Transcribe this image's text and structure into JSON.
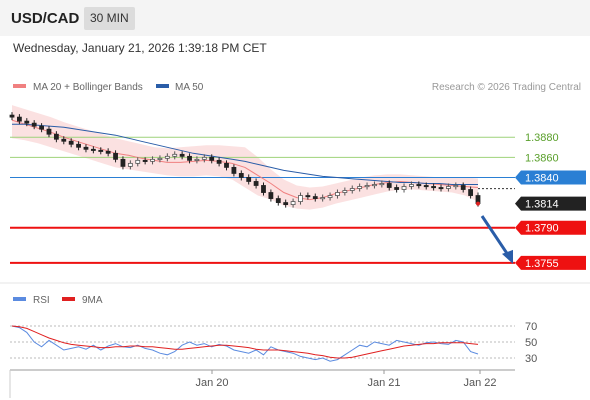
{
  "header": {
    "symbol": "USD/CAD",
    "timeframe": "30 MIN"
  },
  "date_line": "Wednesday, January 21, 2026 1:39:18 PM CET",
  "colors": {
    "ma20": "#f08080",
    "band": "#f8c8c8",
    "ma50": "#2a5da8",
    "candle_up": "#555555",
    "candle_down": "#222222",
    "resistance": "#9ed27a",
    "support": "#ee1111",
    "pivot": "#2a7fd4",
    "rsi": "#5b8be0",
    "rsi_ma": "#e02020",
    "arrow": "#2a5da8"
  },
  "chart_data": [
    {
      "type": "line",
      "title": "",
      "legend": {
        "placement": "top-left",
        "entries": [
          "MA 20 + Bollinger Bands",
          "MA 50"
        ]
      },
      "watermark": "Research © 2026 Trading Central",
      "ylim": [
        1.3738,
        1.3922
      ],
      "x_ticks": [
        "Jan 20",
        "Jan 21",
        "Jan 22"
      ],
      "series": [
        {
          "name": "MA 20 + Bollinger Bands",
          "values": [
            1.3897,
            1.3893,
            1.3889,
            1.3885,
            1.388,
            1.3876,
            1.3872,
            1.3868,
            1.3864,
            1.3862,
            1.3859,
            1.3857,
            1.3855,
            1.3855,
            1.3856,
            1.3857,
            1.3856,
            1.3854,
            1.385,
            1.3842,
            1.3834,
            1.3825,
            1.382,
            1.3818,
            1.382,
            1.3824,
            1.3827,
            1.383,
            1.3833,
            1.3835,
            1.3836,
            1.3835,
            1.3834,
            1.3833,
            1.3832,
            1.3831,
            1.383
          ],
          "upper": [
            1.3912,
            1.3908,
            1.3904,
            1.39,
            1.3895,
            1.3891,
            1.3887,
            1.3883,
            1.3879,
            1.3876,
            1.3873,
            1.387,
            1.3869,
            1.387,
            1.3871,
            1.3872,
            1.3872,
            1.3871,
            1.387,
            1.386,
            1.3848,
            1.3838,
            1.3832,
            1.383,
            1.3831,
            1.3834,
            1.3837,
            1.384,
            1.3842,
            1.3843,
            1.3843,
            1.3842,
            1.3841,
            1.384,
            1.384,
            1.384,
            1.3839
          ],
          "lower": [
            1.3879,
            1.3877,
            1.3874,
            1.387,
            1.3866,
            1.3862,
            1.3858,
            1.3854,
            1.385,
            1.3848,
            1.3846,
            1.3844,
            1.3842,
            1.3841,
            1.3841,
            1.3842,
            1.3841,
            1.3838,
            1.383,
            1.3822,
            1.3818,
            1.3812,
            1.3809,
            1.3808,
            1.381,
            1.3814,
            1.3817,
            1.382,
            1.3823,
            1.3826,
            1.3828,
            1.3828,
            1.3827,
            1.3826,
            1.3825,
            1.3822,
            1.3816
          ]
        },
        {
          "name": "MA 50",
          "values": [
            1.3893,
            1.3893,
            1.3892,
            1.3891,
            1.389,
            1.3888,
            1.3886,
            1.3884,
            1.3882,
            1.3879,
            1.3876,
            1.3873,
            1.387,
            1.3867,
            1.3864,
            1.3862,
            1.386,
            1.3858,
            1.3856,
            1.3853,
            1.385,
            1.3847,
            1.3845,
            1.3843,
            1.3841,
            1.384,
            1.3839,
            1.3838,
            1.3837,
            1.3836,
            1.3835,
            1.3835,
            1.3834,
            1.3834,
            1.3833,
            1.3833,
            1.3833
          ]
        }
      ],
      "candles_close": [
        1.39,
        1.3896,
        1.3894,
        1.3891,
        1.3888,
        1.3883,
        1.3878,
        1.3876,
        1.3873,
        1.387,
        1.3868,
        1.3867,
        1.3866,
        1.3864,
        1.3858,
        1.3851,
        1.3854,
        1.3857,
        1.3856,
        1.3858,
        1.3859,
        1.3861,
        1.3863,
        1.3861,
        1.3857,
        1.3858,
        1.386,
        1.3857,
        1.3854,
        1.385,
        1.3844,
        1.384,
        1.3836,
        1.3832,
        1.3825,
        1.3819,
        1.3815,
        1.3813,
        1.3816,
        1.3822,
        1.3821,
        1.3819,
        1.382,
        1.3822,
        1.3825,
        1.3827,
        1.3829,
        1.3831,
        1.3832,
        1.3833,
        1.3834,
        1.383,
        1.3828,
        1.3831,
        1.3833,
        1.3832,
        1.3831,
        1.383,
        1.3829,
        1.3831,
        1.3832,
        1.3828,
        1.3822,
        1.3814
      ],
      "levels": [
        {
          "label": "1.3880",
          "value": 1.388,
          "kind": "resistance"
        },
        {
          "label": "1.3860",
          "value": 1.386,
          "kind": "resistance"
        },
        {
          "label": "1.3840",
          "value": 1.384,
          "kind": "pivot"
        },
        {
          "label": "1.3814",
          "value": 1.3814,
          "kind": "last"
        },
        {
          "label": "1.3790",
          "value": 1.379,
          "kind": "support"
        },
        {
          "label": "1.3755",
          "value": 1.3755,
          "kind": "support"
        }
      ]
    },
    {
      "type": "line",
      "title": "",
      "legend": {
        "placement": "top-left",
        "entries": [
          "RSI",
          "9MA"
        ]
      },
      "ylim": [
        20,
        80
      ],
      "y_ticks": [
        "70",
        "50",
        "30"
      ],
      "series": [
        {
          "name": "RSI",
          "values": [
            70,
            68,
            62,
            50,
            44,
            52,
            46,
            40,
            42,
            44,
            41,
            46,
            40,
            45,
            48,
            44,
            43,
            46,
            42,
            40,
            36,
            34,
            38,
            46,
            50,
            46,
            48,
            44,
            47,
            45,
            40,
            38,
            36,
            40,
            34,
            44,
            40,
            38,
            36,
            32,
            30,
            28,
            30,
            26,
            28,
            34,
            40,
            46,
            44,
            50,
            48,
            46,
            52,
            50,
            48,
            46,
            49,
            50,
            48,
            47,
            52,
            50,
            38,
            35
          ]
        },
        {
          "name": "9MA",
          "values": [
            70,
            69,
            67,
            63,
            59,
            55,
            52,
            49,
            47,
            46,
            45,
            44,
            43,
            43,
            44,
            44,
            45,
            45,
            44,
            44,
            43,
            42,
            41,
            41,
            42,
            43,
            44,
            45,
            46,
            46,
            45,
            44,
            43,
            41,
            40,
            40,
            40,
            39,
            38,
            37,
            36,
            34,
            33,
            31,
            30,
            30,
            31,
            33,
            35,
            37,
            39,
            41,
            43,
            45,
            46,
            47,
            48,
            48,
            49,
            49,
            49,
            49,
            48,
            47
          ]
        }
      ]
    }
  ]
}
